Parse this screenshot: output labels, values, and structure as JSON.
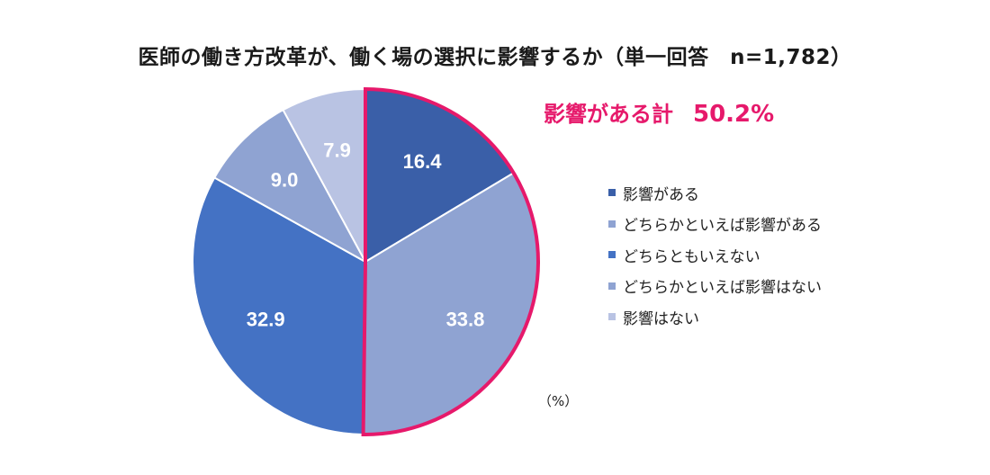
{
  "title": "医師の働き方改革が、働く場の選択に影響するか（単一回答　n=1,782）",
  "callout": {
    "label": "影響がある計",
    "value": "50.2%"
  },
  "unit": "（%）",
  "colors": {
    "highlight": "#e6196b",
    "slices": [
      "#3a5fa8",
      "#8fa3d2",
      "#4472c4",
      "#8fa3d2",
      "#b9c3e3"
    ],
    "legend": [
      "#3a5fa8",
      "#8fa3d2",
      "#4472c4",
      "#8fa3d2",
      "#b9c3e3"
    ]
  },
  "chart_data": {
    "type": "pie",
    "title": "医師の働き方改革が、働く場の選択に影響するか（単一回答　n=1,782）",
    "unit": "%",
    "start": "12 o'clock, clockwise",
    "categories": [
      "影響がある",
      "どちらかといえば影響がある",
      "どちらともいえない",
      "どちらかといえば影響はない",
      "影響はない"
    ],
    "values": [
      16.4,
      33.8,
      32.9,
      9.0,
      7.9
    ],
    "labels": [
      "16.4",
      "33.8",
      "32.9",
      "9.0",
      "7.9"
    ],
    "highlight": {
      "indices": [
        0,
        1
      ],
      "label": "影響がある計",
      "total": "50.2%"
    }
  }
}
